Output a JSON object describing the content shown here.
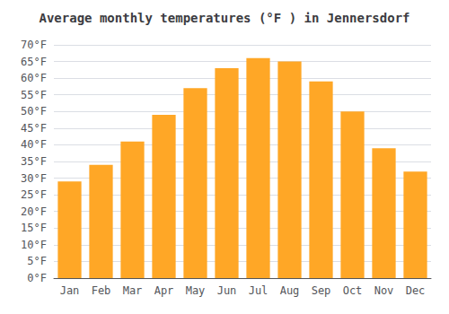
{
  "chart_data": {
    "type": "bar",
    "title": "Average monthly temperatures (°F ) in Jennersdorf",
    "categories": [
      "Jan",
      "Feb",
      "Mar",
      "Apr",
      "May",
      "Jun",
      "Jul",
      "Aug",
      "Sep",
      "Oct",
      "Nov",
      "Dec"
    ],
    "values": [
      29,
      34,
      41,
      49,
      57,
      63,
      66,
      65,
      59,
      50,
      39,
      32
    ],
    "color": "#FFA726",
    "ylim": [
      0,
      70
    ],
    "yticks": [
      {
        "value": 0,
        "label": "0°F"
      },
      {
        "value": 5,
        "label": "5°F"
      },
      {
        "value": 10,
        "label": "10°F"
      },
      {
        "value": 15,
        "label": "15°F"
      },
      {
        "value": 20,
        "label": "20°F"
      },
      {
        "value": 25,
        "label": "25°F"
      },
      {
        "value": 30,
        "label": "30°F"
      },
      {
        "value": 35,
        "label": "35°F"
      },
      {
        "value": 40,
        "label": "40°F"
      },
      {
        "value": 45,
        "label": "45°F"
      },
      {
        "value": 50,
        "label": "50°F"
      },
      {
        "value": 55,
        "label": "55°F"
      },
      {
        "value": 60,
        "label": "60°F"
      },
      {
        "value": 65,
        "label": "65°F"
      },
      {
        "value": 70,
        "label": "70°F"
      }
    ],
    "grid": true
  }
}
